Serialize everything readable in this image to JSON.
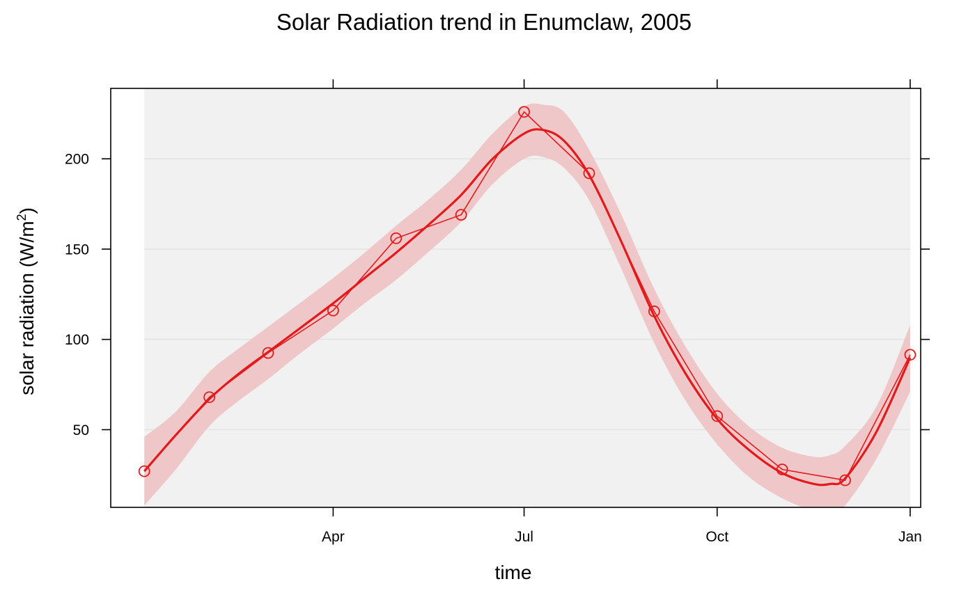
{
  "chart_data": {
    "type": "line",
    "title": "Solar Radiation trend in Enumclaw, 2005",
    "xlabel": "time",
    "ylabel_prefix": "solar radiation (W/m",
    "ylabel_sup": "2",
    "ylabel_suffix": ")",
    "x_ticks": [
      "2005-04-01",
      "2005-07-01",
      "2005-10-01",
      "2006-01-01"
    ],
    "x_tick_labels": [
      "Apr",
      "Jul",
      "Oct",
      "Jan"
    ],
    "y_ticks": [
      50,
      100,
      150,
      200
    ],
    "y_tick_labels": [
      "50",
      "100",
      "150",
      "200"
    ],
    "xlim": [
      "2004-12-16",
      "2006-01-06"
    ],
    "ylim": [
      7,
      239
    ],
    "grid": true,
    "colors": {
      "series": "#e31a1c",
      "band": "#f0c7c8",
      "panel": "#f1f1f1",
      "grid": "#e2e2e2"
    },
    "series": [
      {
        "type": "observed",
        "x": [
          "2005-01-01",
          "2005-02-01",
          "2005-03-01",
          "2005-04-01",
          "2005-05-01",
          "2005-06-01",
          "2005-07-01",
          "2005-08-01",
          "2005-09-01",
          "2005-10-01",
          "2005-11-01",
          "2005-12-01",
          "2006-01-01"
        ],
        "y": [
          27,
          68,
          92.5,
          116,
          156,
          169,
          226,
          192,
          115.5,
          57.5,
          28,
          22,
          91.5
        ]
      },
      {
        "type": "smooth",
        "x": [
          "2005-01-01",
          "2005-01-16",
          "2005-02-01",
          "2005-02-15",
          "2005-03-01",
          "2005-03-16",
          "2005-04-01",
          "2005-04-16",
          "2005-05-01",
          "2005-05-16",
          "2005-06-01",
          "2005-06-16",
          "2005-07-01",
          "2005-07-10",
          "2005-07-20",
          "2005-08-01",
          "2005-08-16",
          "2005-09-01",
          "2005-09-16",
          "2005-10-01",
          "2005-10-16",
          "2005-11-01",
          "2005-11-16",
          "2005-11-24",
          "2005-12-01",
          "2005-12-16",
          "2006-01-01"
        ],
        "y": [
          27,
          47,
          67,
          81,
          93,
          106,
          120,
          134,
          148,
          163,
          180,
          200,
          214,
          216,
          210,
          191,
          155,
          113,
          81,
          56,
          39,
          26,
          20,
          20,
          23,
          49,
          90
        ],
        "lower": [
          8,
          28,
          52,
          66,
          78,
          92,
          106,
          120,
          133,
          148,
          165,
          186,
          200,
          201,
          195,
          177,
          140,
          98,
          66,
          42,
          24,
          12,
          5,
          4,
          8,
          34,
          71
        ],
        "upper": [
          46,
          60,
          82,
          95,
          107,
          120,
          134,
          148,
          163,
          177,
          194,
          214,
          229,
          230,
          226,
          205,
          170,
          128,
          96,
          70,
          52,
          40,
          35,
          36,
          41,
          63,
          108
        ]
      }
    ]
  }
}
